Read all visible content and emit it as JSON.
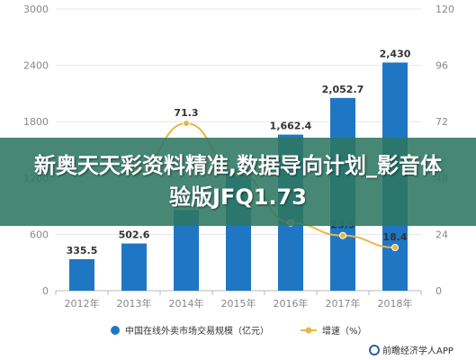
{
  "overlay": {
    "text": "新奥天天彩资料精准,数据导向计划_影音体验版JFQ1.73"
  },
  "source": "前瞻经济学人APP",
  "colors": {
    "bar": "#1f77c4",
    "line": "#e8b547",
    "banner": "#2e7862"
  },
  "chart_data": {
    "type": "bar",
    "categories": [
      "2012年",
      "2013年",
      "2014年",
      "2015年",
      "2016年",
      "2017年",
      "2018年"
    ],
    "series": [
      {
        "name": "中国在线外卖市场交易规模（亿元）",
        "type": "bar",
        "axis": "left",
        "values": [
          335.5,
          502.6,
          860,
          1290,
          1662.4,
          2052.7,
          2430
        ],
        "labels": [
          "335.5",
          "502.6",
          "",
          "",
          "1,662.4",
          "2,052.7",
          "2,430"
        ]
      },
      {
        "name": "增速（%）",
        "type": "line",
        "axis": "right",
        "values": [
          null,
          49.8,
          71.3,
          50,
          28.9,
          23.5,
          18.4
        ],
        "labels": [
          "",
          "",
          "71.3",
          "",
          "",
          "23.5",
          "18.4"
        ]
      }
    ],
    "yleft": {
      "ylim": [
        0,
        3000
      ],
      "ticks": [
        "0",
        "600",
        "1200",
        "1800",
        "2400",
        "3000"
      ]
    },
    "yright": {
      "ylim": [
        0,
        120
      ],
      "ticks": [
        "0",
        "24",
        "48",
        "72",
        "96",
        "120"
      ]
    },
    "grid": true,
    "legend": "bottom"
  }
}
